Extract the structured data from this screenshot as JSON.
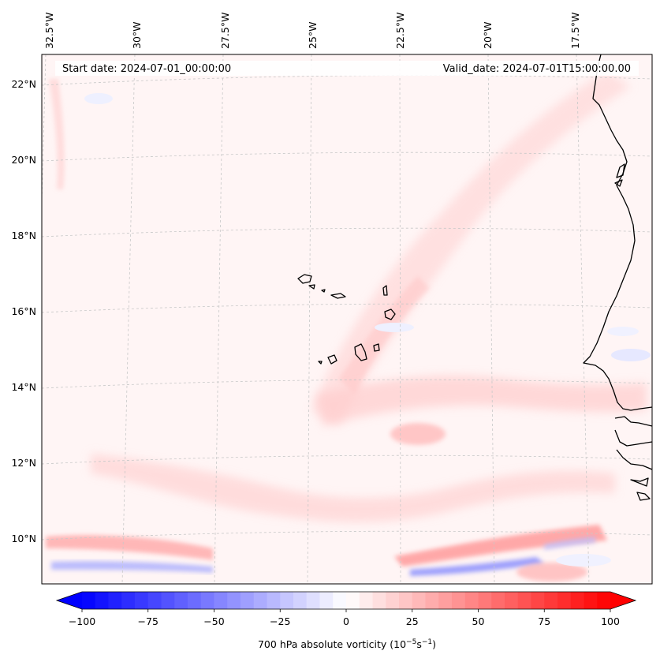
{
  "map": {
    "header": {
      "start_label": "Start date: 2024-07-01_00:00:00",
      "valid_label": "Valid_date: 2024-07-01T15:00:00.00"
    },
    "lon_labels": [
      "32.5°W",
      "30°W",
      "27.5°W",
      "25°W",
      "22.5°W",
      "20°W",
      "17.5°W"
    ],
    "lat_labels": [
      "22°N",
      "20°N",
      "18°N",
      "16°N",
      "14°N",
      "12°N",
      "10°N"
    ],
    "field": "700 hPa absolute vorticity",
    "colors": {
      "coastline": "#000000",
      "gridline": "#c8c8c8",
      "background": "#fff4f4",
      "positive": "#ff0000",
      "negative": "#0000ff"
    }
  },
  "colorbar": {
    "ticks": [
      "−100",
      "−75",
      "−50",
      "−25",
      "0",
      "25",
      "50",
      "75",
      "100"
    ],
    "label_main": "700 hPa absolute vorticity (10",
    "label_exp1": "−5",
    "label_mid": "s",
    "label_exp2": "−1",
    "label_end": ")",
    "min": -100,
    "max": 100,
    "cmap": "bwr"
  }
}
